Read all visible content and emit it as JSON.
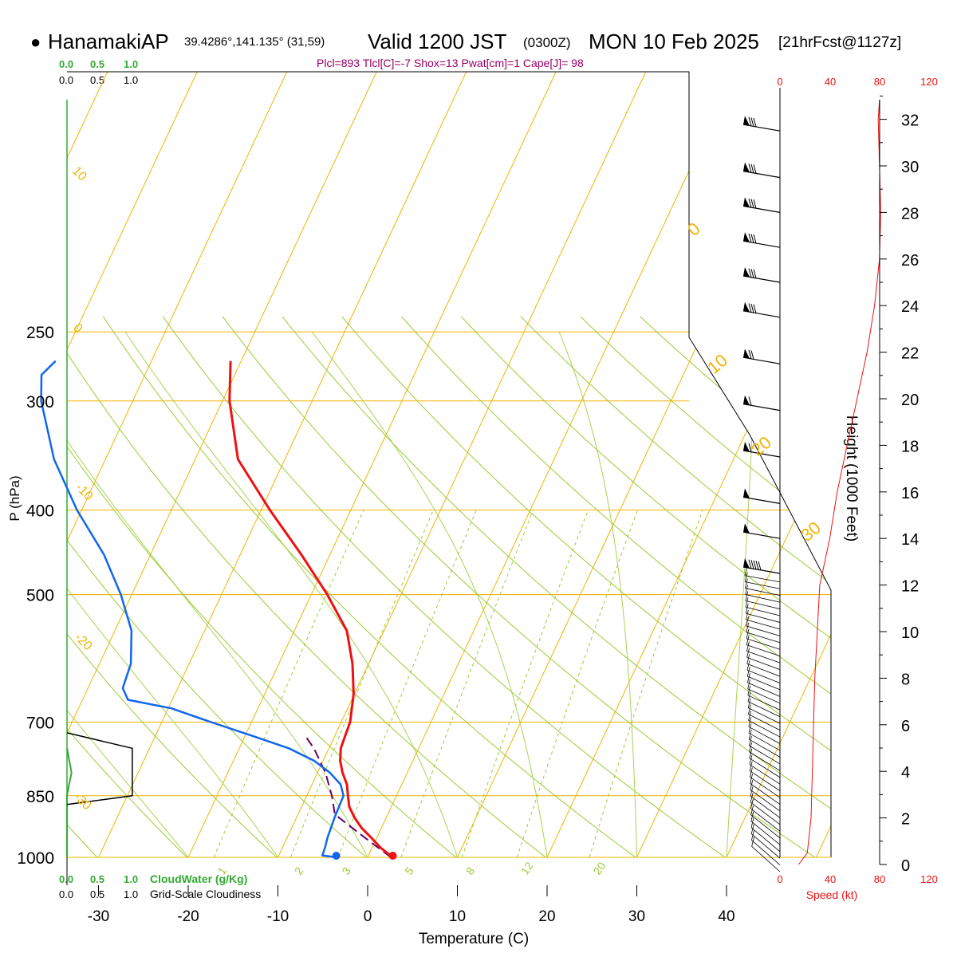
{
  "header": {
    "bullet": "●",
    "station": "HanamakiAP",
    "coords": "39.4286°,141.135° (31,59)",
    "valid": "Valid 1200 JST",
    "utc": "(0300Z)",
    "date": "MON 10 Feb 2025",
    "forecast": "[21hrFcst@1127z]",
    "indices": "Plcl=893 Tlcl[C]=-7 Shox=13 Pwat[cm]=1 Cape[J]= 98"
  },
  "labels": {
    "cloudwater_ticks": [
      "0.0",
      "0.5",
      "1.0"
    ],
    "cloudiness_ticks": [
      "0.0",
      "0.5",
      "1.0"
    ],
    "cloudwater_label": "CloudWater (g/Kg)",
    "cloudiness_label": "Grid-Scale Cloudiness",
    "speed_ticks": [
      "0",
      "40",
      "80",
      "120"
    ],
    "speed_label": "Speed (kt)",
    "height_label": "Height (1000 Feet)"
  },
  "colors": {
    "temperature": "#ee1111",
    "dewpoint": "#1166ee",
    "parcel": "#660066",
    "isotherm": "#f0b400",
    "dry_adiabat": "#99cc33",
    "mixing_ratio": "#99cc33",
    "cloudwater": "#33aa33",
    "speed": "#ee1111",
    "indices": "#990066"
  },
  "chart_data": {
    "type": "skew-t",
    "title": "HanamakiAP Valid 1200 JST (0300Z) MON 10 Feb 2025",
    "xlabel": "Temperature (C)",
    "ylabel": "P (hPa)",
    "x_ticks": [
      -30,
      -20,
      -10,
      0,
      10,
      20,
      30,
      40
    ],
    "pressure_ticks": [
      250,
      300,
      400,
      500,
      700,
      850,
      1000
    ],
    "height_ticks_kft": [
      0,
      2,
      4,
      6,
      8,
      10,
      12,
      14,
      16,
      18,
      20,
      22,
      24,
      26,
      28,
      30,
      32
    ],
    "isotherm_labels": [
      "10",
      "0",
      "-10",
      "-20",
      "-30",
      "0",
      "10",
      "20",
      "30"
    ],
    "mixing_ratio_labels": [
      "1",
      "2",
      "3",
      "5",
      "8",
      "12",
      "20"
    ],
    "temperature_profile": [
      {
        "p": 1000,
        "t": 2.8
      },
      {
        "p": 975,
        "t": 0.7
      },
      {
        "p": 950,
        "t": -1.1
      },
      {
        "p": 925,
        "t": -3.0
      },
      {
        "p": 900,
        "t": -4.6
      },
      {
        "p": 875,
        "t": -6.0
      },
      {
        "p": 850,
        "t": -7.0
      },
      {
        "p": 825,
        "t": -8.0
      },
      {
        "p": 800,
        "t": -9.4
      },
      {
        "p": 775,
        "t": -10.6
      },
      {
        "p": 750,
        "t": -11.5
      },
      {
        "p": 725,
        "t": -12.0
      },
      {
        "p": 700,
        "t": -12.5
      },
      {
        "p": 650,
        "t": -14.3
      },
      {
        "p": 600,
        "t": -16.8
      },
      {
        "p": 550,
        "t": -20.0
      },
      {
        "p": 500,
        "t": -25.0
      },
      {
        "p": 450,
        "t": -31.0
      },
      {
        "p": 400,
        "t": -38.0
      },
      {
        "p": 350,
        "t": -45.5
      },
      {
        "p": 300,
        "t": -51.0
      },
      {
        "p": 270,
        "t": -54.0
      }
    ],
    "dewpoint_profile": [
      {
        "p": 1000,
        "t": -3.5
      },
      {
        "p": 995,
        "t": -5.2
      },
      {
        "p": 975,
        "t": -5.5
      },
      {
        "p": 950,
        "t": -6.0
      },
      {
        "p": 900,
        "t": -6.8
      },
      {
        "p": 850,
        "t": -7.5
      },
      {
        "p": 825,
        "t": -8.7
      },
      {
        "p": 800,
        "t": -10.8
      },
      {
        "p": 775,
        "t": -13.5
      },
      {
        "p": 750,
        "t": -17.3
      },
      {
        "p": 725,
        "t": -22.5
      },
      {
        "p": 700,
        "t": -28.0
      },
      {
        "p": 675,
        "t": -33.5
      },
      {
        "p": 660,
        "t": -39.0
      },
      {
        "p": 640,
        "t": -40.5
      },
      {
        "p": 600,
        "t": -41.5
      },
      {
        "p": 550,
        "t": -44.0
      },
      {
        "p": 500,
        "t": -48.0
      },
      {
        "p": 450,
        "t": -53.0
      },
      {
        "p": 400,
        "t": -59.5
      },
      {
        "p": 350,
        "t": -66.0
      },
      {
        "p": 300,
        "t": -72.0
      },
      {
        "p": 280,
        "t": -74.0
      },
      {
        "p": 270,
        "t": -73.5
      }
    ],
    "parcel_profile": [
      {
        "p": 1000,
        "t": 2.6
      },
      {
        "p": 950,
        "t": -1.8
      },
      {
        "p": 893,
        "t": -7.0
      },
      {
        "p": 850,
        "t": -8.8
      },
      {
        "p": 800,
        "t": -11.3
      },
      {
        "p": 750,
        "t": -14.5
      },
      {
        "p": 725,
        "t": -16.5
      }
    ],
    "surface_points": {
      "temperature": 2.8,
      "dewpoint": -3.5
    },
    "cloudwater_profile": [
      {
        "p": 1000,
        "v": 0.0
      },
      {
        "p": 850,
        "v": 0.0
      },
      {
        "p": 830,
        "v": 0.03
      },
      {
        "p": 800,
        "v": 0.08
      },
      {
        "p": 780,
        "v": 0.05
      },
      {
        "p": 750,
        "v": 0.0
      }
    ],
    "cloudiness_profile": [
      {
        "p": 870,
        "v": 0.0
      },
      {
        "p": 850,
        "v": 0.9
      },
      {
        "p": 750,
        "v": 0.9
      },
      {
        "p": 720,
        "v": 0.0
      }
    ],
    "wind_speed_profile_kt": [
      {
        "h": 0,
        "v": 15
      },
      {
        "h": 0.5,
        "v": 22
      },
      {
        "h": 2,
        "v": 25
      },
      {
        "h": 4,
        "v": 26
      },
      {
        "h": 6,
        "v": 27
      },
      {
        "h": 8,
        "v": 28
      },
      {
        "h": 10,
        "v": 30
      },
      {
        "h": 12,
        "v": 32
      },
      {
        "h": 13,
        "v": 36
      },
      {
        "h": 14,
        "v": 40
      },
      {
        "h": 16,
        "v": 46
      },
      {
        "h": 18,
        "v": 54
      },
      {
        "h": 20,
        "v": 62
      },
      {
        "h": 22,
        "v": 70
      },
      {
        "h": 24,
        "v": 76
      },
      {
        "h": 26,
        "v": 80
      },
      {
        "h": 28,
        "v": 81
      },
      {
        "h": 30,
        "v": 80
      },
      {
        "h": 32,
        "v": 79
      }
    ],
    "wind_barbs": [
      {
        "h": 31.5,
        "speed": 80
      },
      {
        "h": 29.5,
        "speed": 80
      },
      {
        "h": 28.0,
        "speed": 80
      },
      {
        "h": 26.5,
        "speed": 80
      },
      {
        "h": 25.0,
        "speed": 80
      },
      {
        "h": 23.5,
        "speed": 75
      },
      {
        "h": 21.5,
        "speed": 70
      },
      {
        "h": 19.5,
        "speed": 60
      },
      {
        "h": 17.5,
        "speed": 55
      },
      {
        "h": 15.5,
        "speed": 50
      },
      {
        "h": 14.0,
        "speed": 50
      },
      {
        "h": 12.5,
        "speed": 45
      }
    ]
  }
}
